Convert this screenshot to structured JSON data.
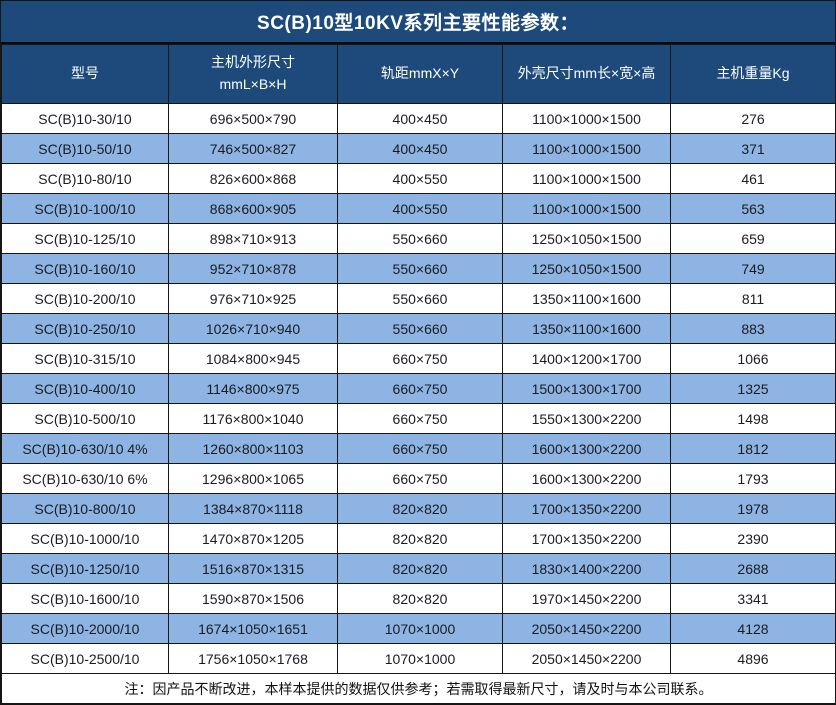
{
  "title": "SC(B)10型10KV系列主要性能参数：",
  "colors": {
    "header_bg": "#1d4a7b",
    "header_text": "#ffffff",
    "row_bg": "#ffffff",
    "row_alt_bg": "#8db4e2",
    "border": "#161616",
    "data_text": "#1b1b22"
  },
  "headers": {
    "model": "型号",
    "host_dim_line1": "主机外形尺寸",
    "host_dim_line2": "mmL×B×H",
    "gauge": "轨距mmX×Y",
    "shell_dim": "外壳尺寸mm长×宽×高",
    "weight": "主机重量Kg"
  },
  "table": {
    "column_keys": [
      "model",
      "host-dimensions",
      "gauge",
      "shell-dimensions",
      "weight"
    ],
    "rows": [
      [
        "SC(B)10-30/10",
        "696×500×790",
        "400×450",
        "1100×1000×1500",
        "276"
      ],
      [
        "SC(B)10-50/10",
        "746×500×827",
        "400×450",
        "1100×1000×1500",
        "371"
      ],
      [
        "SC(B)10-80/10",
        "826×600×868",
        "400×550",
        "1100×1000×1500",
        "461"
      ],
      [
        "SC(B)10-100/10",
        "868×600×905",
        "400×550",
        "1100×1000×1500",
        "563"
      ],
      [
        "SC(B)10-125/10",
        "898×710×913",
        "550×660",
        "1250×1050×1500",
        "659"
      ],
      [
        "SC(B)10-160/10",
        "952×710×878",
        "550×660",
        "1250×1050×1500",
        "749"
      ],
      [
        "SC(B)10-200/10",
        "976×710×925",
        "550×660",
        "1350×1100×1600",
        "811"
      ],
      [
        "SC(B)10-250/10",
        "1026×710×940",
        "550×660",
        "1350×1100×1600",
        "883"
      ],
      [
        "SC(B)10-315/10",
        "1084×800×945",
        "660×750",
        "1400×1200×1700",
        "1066"
      ],
      [
        "SC(B)10-400/10",
        "1146×800×975",
        "660×750",
        "1500×1300×1700",
        "1325"
      ],
      [
        "SC(B)10-500/10",
        "1176×800×1040",
        "660×750",
        "1550×1300×2200",
        "1498"
      ],
      [
        "SC(B)10-630/10 4%",
        "1260×800×1103",
        "660×750",
        "1600×1300×2200",
        "1812"
      ],
      [
        "SC(B)10-630/10 6%",
        "1296×800×1065",
        "660×750",
        "1600×1300×2200",
        "1793"
      ],
      [
        "SC(B)10-800/10",
        "1384×870×1118",
        "820×820",
        "1700×1350×2200",
        "1978"
      ],
      [
        "SC(B)10-1000/10",
        "1470×870×1205",
        "820×820",
        "1700×1350×2200",
        "2390"
      ],
      [
        "SC(B)10-1250/10",
        "1516×870×1315",
        "820×820",
        "1830×1400×2200",
        "2688"
      ],
      [
        "SC(B)10-1600/10",
        "1590×870×1506",
        "820×820",
        "1970×1450×2200",
        "3341"
      ],
      [
        "SC(B)10-2000/10",
        "1674×1050×1651",
        "1070×1000",
        "2050×1450×2200",
        "4128"
      ],
      [
        "SC(B)10-2500/10",
        "1756×1050×1768",
        "1070×1000",
        "2050×1450×2200",
        "4896"
      ]
    ]
  },
  "footer_note": "注：因产品不断改进，本样本提供的数据仅供参考；若需取得最新尺寸，请及时与本公司联系。"
}
